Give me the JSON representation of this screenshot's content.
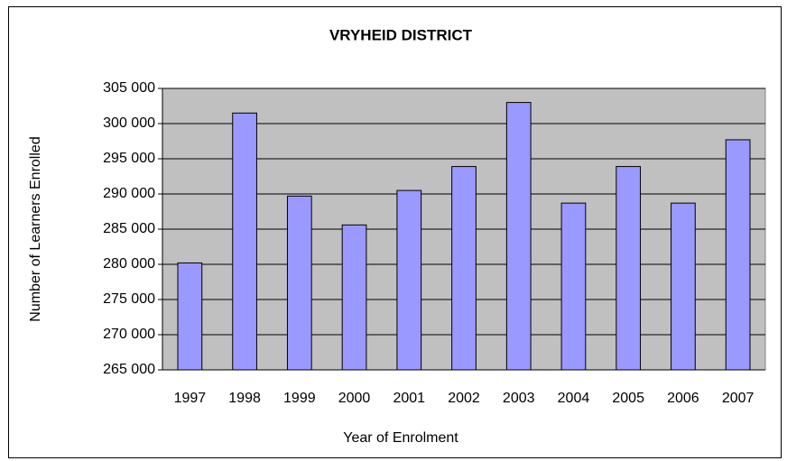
{
  "chart_data": {
    "type": "bar",
    "title": "VRYHEID DISTRICT",
    "x_label": "Year of Enrolment",
    "y_label": "Number of Learners Enrolled",
    "categories": [
      "1997",
      "1998",
      "1999",
      "2000",
      "2001",
      "2002",
      "2003",
      "2004",
      "2005",
      "2006",
      "2007"
    ],
    "values": [
      280200,
      301500,
      289700,
      285600,
      290500,
      293900,
      303000,
      288700,
      293900,
      288700,
      297700
    ],
    "color": "#9999ff",
    "ylim": [
      265000,
      305000
    ],
    "yticks": [
      {
        "value": 265000,
        "label": "265 000"
      },
      {
        "value": 270000,
        "label": "270 000"
      },
      {
        "value": 275000,
        "label": "275 000"
      },
      {
        "value": 280000,
        "label": "280 000"
      },
      {
        "value": 285000,
        "label": "285 000"
      },
      {
        "value": 290000,
        "label": "290 000"
      },
      {
        "value": 295000,
        "label": "295 000"
      },
      {
        "value": 300000,
        "label": "300 000"
      },
      {
        "value": 305000,
        "label": "305 000"
      }
    ],
    "grid": true
  }
}
